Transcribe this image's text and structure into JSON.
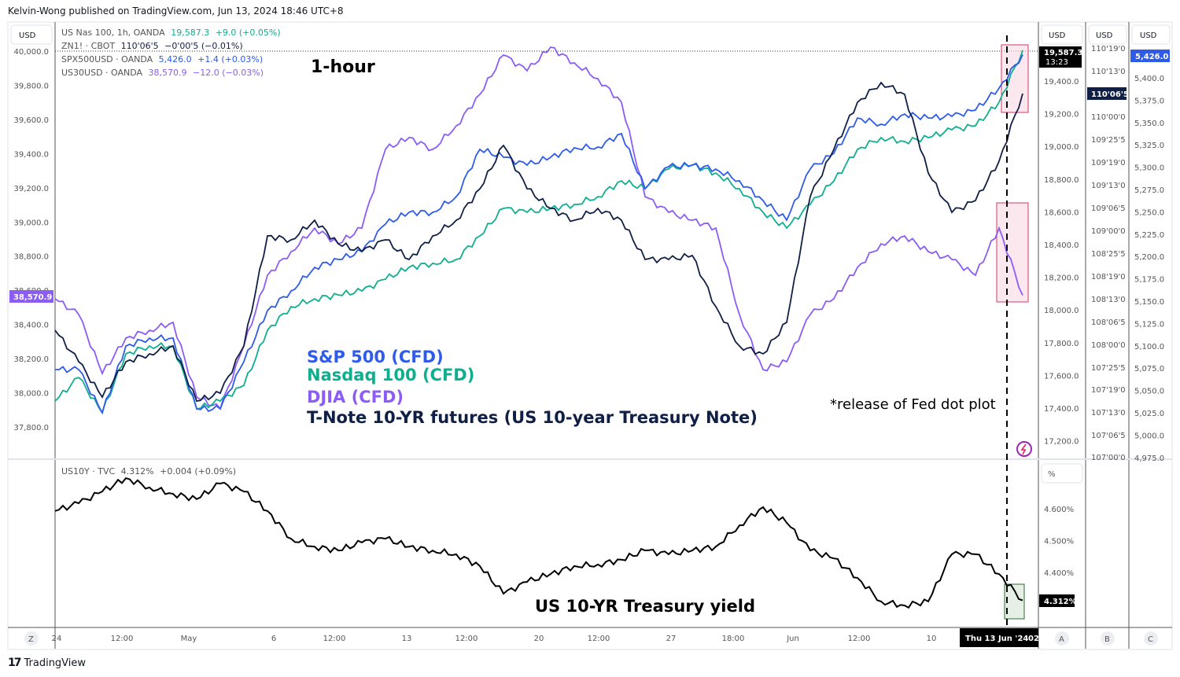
{
  "publisher": "Kelvin-Wong published on TradingView.com, Jun 13, 2024 18:46 UTC+8",
  "footer_brand": "TradingView",
  "colors": {
    "nasdaq": "#0fae8f",
    "spx": "#2f5bea",
    "djia": "#8b5cf6",
    "zn": "#0f1f45",
    "yield": "#000000",
    "fed_box": "#f8d7e2",
    "fed_box_border": "#d63864",
    "yield_box": "#e5efe5",
    "yield_box_border": "#2e6b2e"
  },
  "legend": {
    "nasdaq": {
      "name": "US Nas 100, 1h, OANDA",
      "price": "19,587.3",
      "change": "+9.0 (+0.05%)"
    },
    "zn": {
      "name": "ZN1! · CBOT",
      "price": "110'06'5",
      "change": "−0'00'5 (−0.01%)"
    },
    "spx": {
      "name": "SPX500USD · OANDA",
      "price": "5,426.0",
      "change": "+1.4 (+0.03%)"
    },
    "djia": {
      "name": "US30USD · OANDA",
      "price": "38,570.9",
      "change": "−12.0 (−0.03%)"
    },
    "yield": {
      "name": "US10Y · TVC",
      "price": "4.312%",
      "change": "+0.004 (+0.09%)"
    }
  },
  "annotations": {
    "timeframe": "1-hour",
    "spx_label": "S&P 500 (CFD)",
    "nasdaq_label": "Nasdaq 100 (CFD)",
    "djia_label": "DJIA (CFD)",
    "zn_label": "T-Note 10-YR futures (US 10-year Treasury Note)",
    "fed_note": "*release of Fed dot plot",
    "yield_label": "US 10-YR Treasury yield"
  },
  "axes": {
    "currency": "USD",
    "percent": "%",
    "djia_ticks": [
      "40,000.0",
      "39,800.0",
      "39,600.0",
      "39,400.0",
      "39,200.0",
      "39,000.0",
      "38,800.0",
      "38,600.0",
      "38,400.0",
      "38,200.0",
      "38,000.0",
      "37,800.0"
    ],
    "nasdaq_ticks": [
      "19,400.0",
      "19,200.0",
      "19,000.0",
      "18,800.0",
      "18,600.0",
      "18,400.0",
      "18,200.0",
      "18,000.0",
      "17,800.0",
      "17,600.0",
      "17,400.0",
      "17,200.0"
    ],
    "zn_ticks": [
      "110'19'0",
      "110'13'0",
      "110'00'0",
      "109'25'5",
      "109'19'0",
      "109'13'0",
      "109'06'5",
      "109'00'0",
      "108'25'5",
      "108'19'0",
      "108'13'0",
      "108'06'5",
      "108'00'0",
      "107'25'5",
      "107'19'0",
      "107'13'0",
      "107'06'5",
      "107'00'0"
    ],
    "spx_ticks": [
      "5,400.0",
      "5,375.0",
      "5,350.0",
      "5,325.0",
      "5,300.0",
      "5,275.0",
      "5,250.0",
      "5,225.0",
      "5,200.0",
      "5,175.0",
      "5,150.0",
      "5,125.0",
      "5,100.0",
      "5,075.0",
      "5,050.0",
      "5,025.0",
      "5,000.0",
      "4,975.0"
    ],
    "yield_ticks": [
      "4.600%",
      "4.500%",
      "4.400%"
    ],
    "time_ticks": [
      "24",
      "12:00",
      "May",
      "6",
      "12:00",
      "13",
      "12:00",
      "20",
      "12:00",
      "27",
      "18:00",
      "Jun",
      "12:00",
      "10"
    ],
    "time_cursor": "Thu 13 Jun '24",
    "time_last": "02",
    "last_nasdaq_time": "13:23",
    "scale_buttons": [
      "Z",
      "A",
      "B",
      "C"
    ]
  },
  "chart_data": [
    {
      "type": "line",
      "title": "1-hour",
      "series": [
        {
          "name": "US Nas 100, 1h, OANDA",
          "axis": "nasdaq",
          "values": [
            17443,
            17587,
            17371,
            17732,
            17780,
            17780,
            17395,
            17443,
            17539,
            17876,
            18020,
            18068,
            18092,
            18116,
            18188,
            18261,
            18285,
            18309,
            18453,
            18621,
            18597,
            18621,
            18645,
            18693,
            18789,
            18741,
            18862,
            18886,
            18837,
            18741,
            18597,
            18501,
            18645,
            18789,
            18982,
            19054,
            19030,
            19054,
            19102,
            19126,
            19270,
            19587.3
          ]
        },
        {
          "name": "SPX500USD · OANDA",
          "axis": "spx",
          "values": [
            5073.4,
            5073.4,
            5025.0,
            5099.8,
            5108.6,
            5108.6,
            5029.4,
            5029.4,
            5082.2,
            5139.4,
            5161.4,
            5187.8,
            5196.7,
            5205.5,
            5236.3,
            5249.5,
            5249.5,
            5267.1,
            5319.9,
            5311.1,
            5302.3,
            5311.1,
            5321.7,
            5322.5,
            5337.5,
            5275.9,
            5300.5,
            5302.3,
            5297.9,
            5284.7,
            5262.7,
            5240.7,
            5297.9,
            5315.5,
            5355.1,
            5348.1,
            5359.5,
            5355.1,
            5356.9,
            5363.9,
            5388.6,
            5426.0
          ]
        },
        {
          "name": "US30USD · OANDA",
          "axis": "djia",
          "values": [
            38550,
            38458,
            38113,
            38320,
            38366,
            38412,
            37975,
            37906,
            38274,
            38688,
            38826,
            38964,
            38872,
            38964,
            39425,
            39494,
            39425,
            39563,
            39747,
            39977,
            39885,
            40023,
            39931,
            39839,
            39701,
            39148,
            39056,
            39010,
            38964,
            38458,
            38136,
            38182,
            38458,
            38550,
            38734,
            38872,
            38918,
            38826,
            38780,
            38688,
            38964,
            38570.9
          ]
        },
        {
          "name": "ZN1! · CBOT",
          "axis": "zn",
          "values": [
            108.095,
            107.815,
            107.499,
            107.815,
            107.885,
            107.955,
            107.464,
            107.534,
            107.955,
            108.935,
            108.9,
            109.075,
            108.865,
            108.795,
            108.9,
            108.725,
            108.935,
            109.075,
            109.355,
            109.741,
            109.355,
            109.18,
            109.075,
            109.18,
            109.075,
            108.725,
            108.725,
            108.76,
            108.305,
            107.955,
            107.885,
            108.165,
            109.285,
            109.706,
            110.126,
            110.301,
            110.196,
            109.495,
            109.145,
            109.25,
            109.601,
            110.203
          ]
        }
      ],
      "axis_ranges": {
        "djia": [
          37700,
          40100
        ],
        "nasdaq": [
          17150,
          19650
        ],
        "spx": [
          4970,
          5440
        ],
        "zn": [
          106.95,
          110.65
        ]
      },
      "grid": false
    },
    {
      "type": "line",
      "series": [
        {
          "name": "US10Y · TVC",
          "axis": "yield",
          "values": [
            4.593,
            4.617,
            4.654,
            4.696,
            4.667,
            4.647,
            4.63,
            4.679,
            4.654,
            4.593,
            4.506,
            4.481,
            4.469,
            4.494,
            4.506,
            4.481,
            4.469,
            4.457,
            4.42,
            4.333,
            4.37,
            4.395,
            4.42,
            4.425,
            4.44,
            4.469,
            4.457,
            4.469,
            4.481,
            4.548,
            4.605,
            4.556,
            4.469,
            4.444,
            4.383,
            4.309,
            4.296,
            4.309,
            4.457,
            4.457,
            4.395,
            4.312
          ]
        }
      ],
      "axis_ranges": {
        "yield": [
          4.25,
          4.73
        ]
      },
      "grid": false
    }
  ]
}
